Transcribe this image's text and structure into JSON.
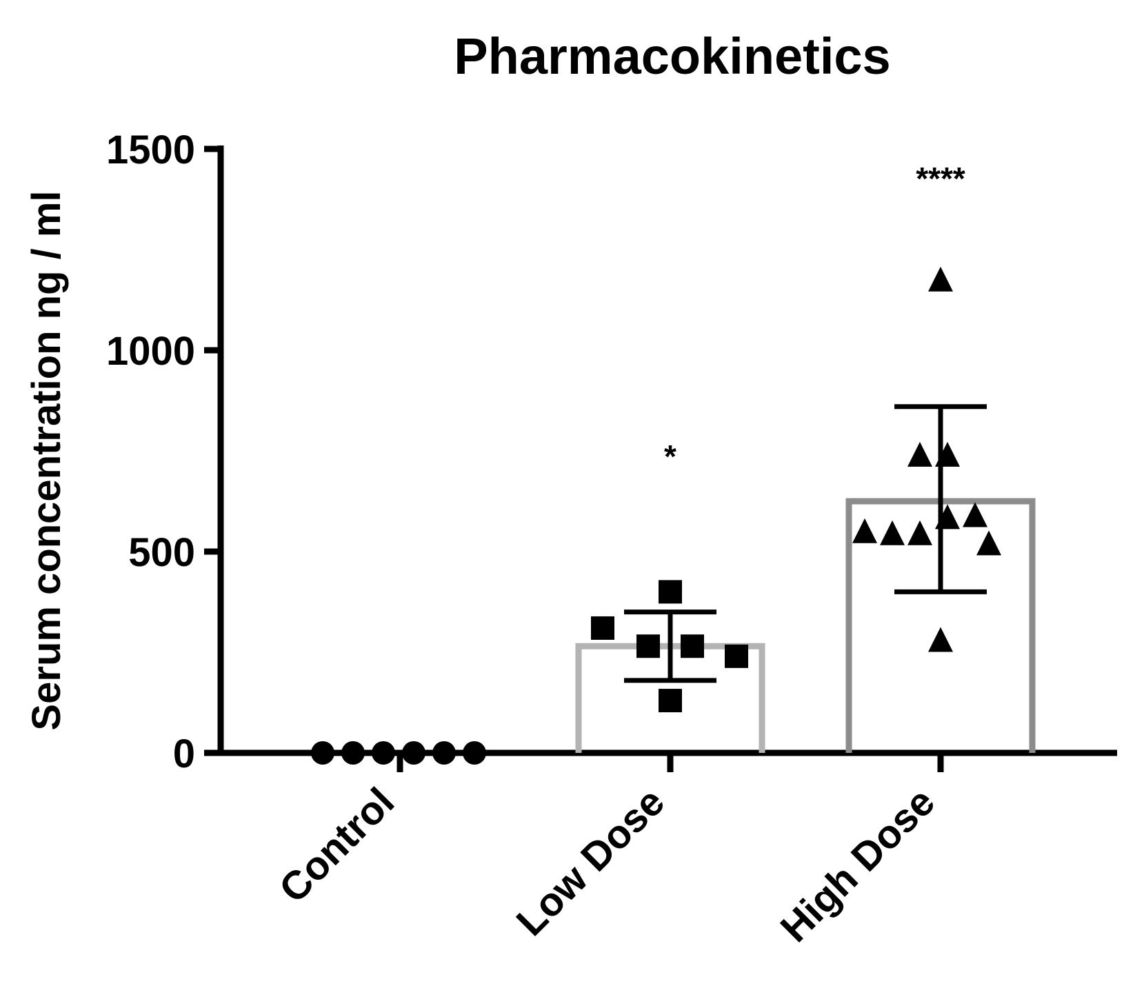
{
  "chart_data": {
    "type": "bar",
    "title": "Pharmacokinetics",
    "xlabel": "",
    "ylabel": "Serum concentration ng / ml",
    "ylim": [
      0,
      1500
    ],
    "yticks": [
      0,
      500,
      1000,
      1500
    ],
    "grid": false,
    "legend": "none",
    "categories": [
      "Control",
      "Low Dose",
      "High Dose"
    ],
    "values": [
      0,
      265,
      625
    ],
    "error_bars": [
      {
        "low": 0,
        "high": 0
      },
      {
        "low": 180,
        "high": 350
      },
      {
        "low": 400,
        "high": 860
      }
    ],
    "significance": [
      "",
      "*",
      "****"
    ],
    "points": [
      {
        "category": "Control",
        "marker": "circle",
        "values": [
          0,
          0,
          0,
          0,
          0,
          0
        ]
      },
      {
        "category": "Low Dose",
        "marker": "square",
        "values": [
          310,
          265,
          265,
          400,
          240,
          130
        ]
      },
      {
        "category": "High Dose",
        "marker": "triangle",
        "values": [
          550,
          545,
          545,
          740,
          740,
          585,
          590,
          520,
          280,
          1175
        ]
      }
    ],
    "colors": {
      "axis": "#000000",
      "low_dose_bar": "#b3b3b3",
      "high_dose_bar": "#8c8c8c",
      "markers": "#000000"
    }
  }
}
